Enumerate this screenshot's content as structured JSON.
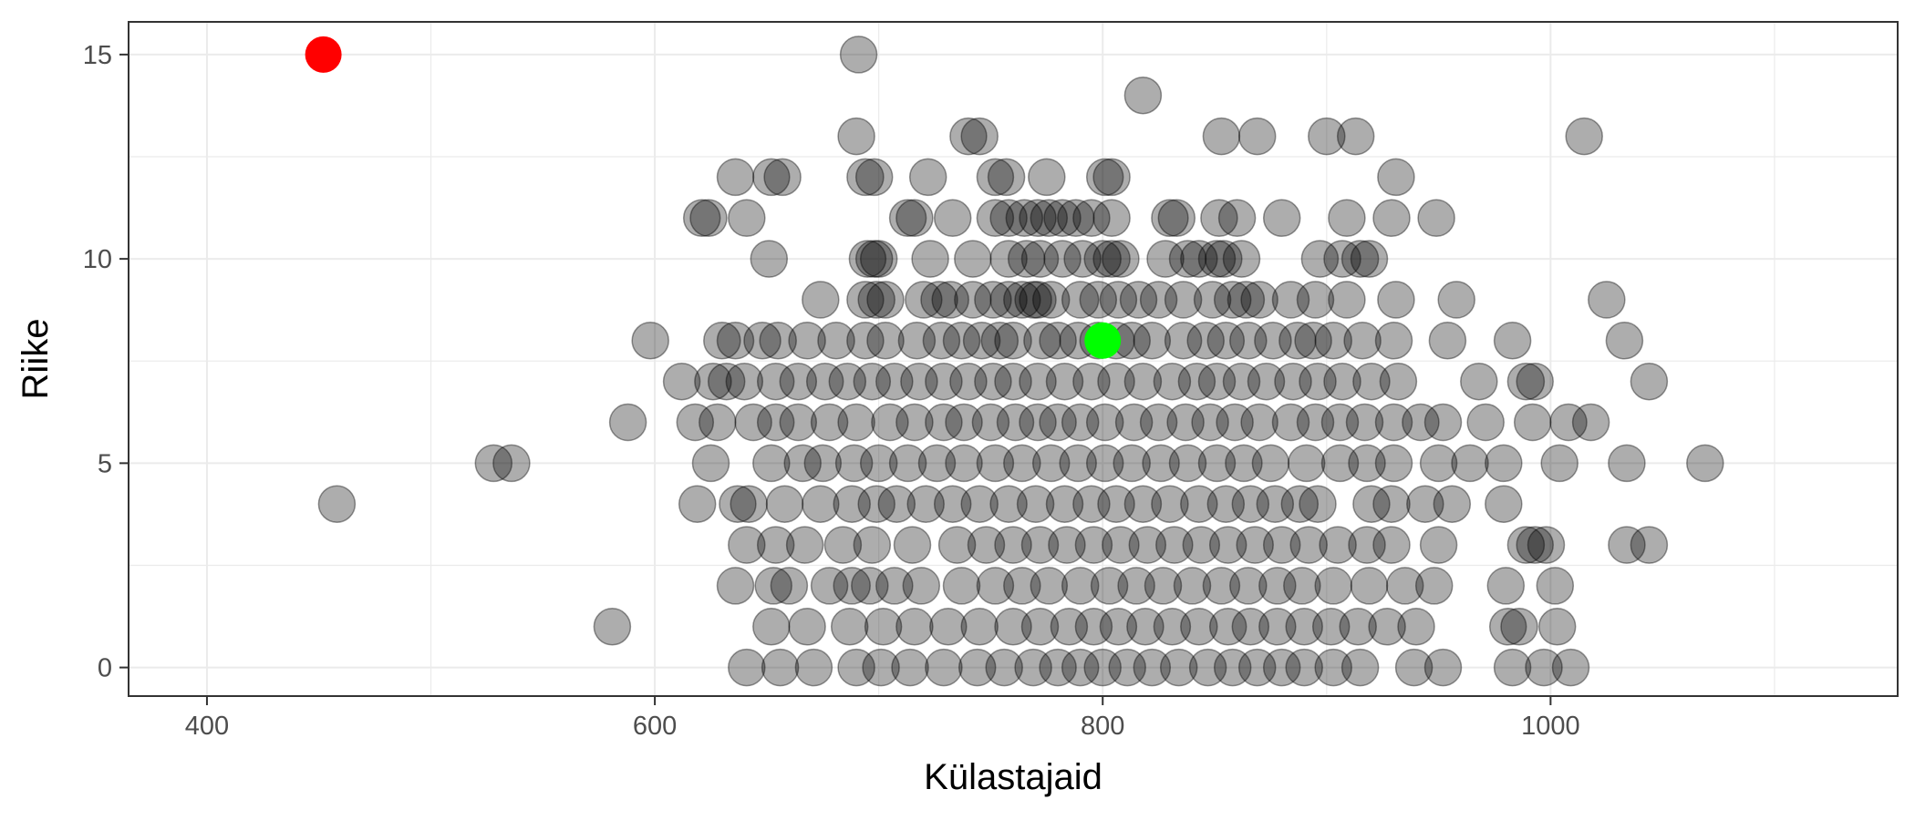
{
  "chart_data": {
    "type": "scatter",
    "xlabel": "Külastajaid",
    "ylabel": "Riike",
    "xlim": [
      365,
      1155
    ],
    "ylim": [
      -0.7,
      15.8
    ],
    "x_ticks": [
      400,
      600,
      800,
      1000
    ],
    "x_tick_labels": [
      "400",
      "600",
      "800",
      "1000"
    ],
    "x_minor_ticks": [
      500,
      700,
      900,
      1100
    ],
    "y_ticks": [
      0,
      5,
      10,
      15
    ],
    "y_tick_labels": [
      "0",
      "5",
      "10",
      "15"
    ],
    "y_minor_ticks": [
      2.5,
      7.5,
      12.5
    ],
    "grid": true,
    "legend": "none",
    "colors": {
      "points": "#000000",
      "highlight_red": "#ff0000",
      "highlight_green": "#00ff00",
      "grid": "#ebebeb",
      "frame": "#333333"
    },
    "point_opacity": 0.32,
    "highlights": [
      {
        "x": 452,
        "y": 15,
        "color": "#ff0000"
      },
      {
        "x": 800,
        "y": 8,
        "color": "#00ff00"
      }
    ],
    "series": [
      {
        "rows": [
          {
            "y": 15,
            "x": [
              691
            ]
          },
          {
            "y": 14,
            "x": [
              818
            ]
          },
          {
            "y": 13,
            "x": [
              690,
              740,
              745,
              853,
              869,
              900,
              913,
              1015
            ]
          },
          {
            "y": 12,
            "x": [
              636,
              652,
              657,
              694,
              698,
              722,
              752,
              757,
              775,
              801,
              804,
              931
            ]
          },
          {
            "y": 11,
            "x": [
              621,
              624,
              641,
              713,
              716,
              733,
              752,
              758,
              765,
              771,
              776,
              782,
              788,
              795,
              804,
              830,
              833,
              852,
              860,
              880,
              909,
              929,
              949
            ]
          },
          {
            "y": 10,
            "x": [
              651,
              695,
              698,
              700,
              723,
              742,
              758,
              766,
              772,
              782,
              791,
              800,
              804,
              808,
              828,
              838,
              843,
              851,
              854,
              862,
              897,
              907,
              915,
              919
            ]
          },
          {
            "y": 9,
            "x": [
              674,
              694,
              699,
              703,
              720,
              727,
              732,
              742,
              751,
              758,
              764,
              769,
              771,
              777,
              790,
              798,
              807,
              816,
              825,
              836,
              849,
              858,
              864,
              870,
              884,
              895,
              909,
              931,
              958,
              1025
            ]
          },
          {
            "y": 8,
            "x": [
              598,
              630,
              636,
              648,
              655,
              668,
              681,
              694,
              703,
              717,
              728,
              737,
              746,
              754,
              760,
              773,
              780,
              789,
              798,
              806,
              813,
              822,
              836,
              846,
              855,
              865,
              876,
              887,
              894,
              903,
              916,
              930,
              954,
              983,
              1033
            ]
          },
          {
            "y": 7,
            "x": [
              612,
              626,
              632,
              640,
              654,
              664,
              676,
              686,
              697,
              707,
              718,
              729,
              740,
              751,
              760,
              771,
              783,
              795,
              806,
              818,
              831,
              842,
              851,
              862,
              873,
              885,
              896,
              907,
              920,
              932,
              968,
              989,
              993,
              1044
            ]
          },
          {
            "y": 6,
            "x": [
              588,
              618,
              628,
              644,
              654,
              664,
              678,
              690,
              705,
              716,
              729,
              738,
              750,
              761,
              771,
              780,
              790,
              801,
              814,
              825,
              837,
              848,
              859,
              870,
              884,
              895,
              906,
              917,
              930,
              942,
              952,
              971,
              992,
              1008,
              1018
            ]
          },
          {
            "y": 5,
            "x": [
              528,
              536,
              625,
              652,
              666,
              675,
              689,
              700,
              713,
              726,
              738,
              752,
              764,
              777,
              789,
              801,
              813,
              826,
              838,
              851,
              863,
              875,
              891,
              906,
              918,
              930,
              950,
              964,
              979,
              1004,
              1034,
              1069
            ]
          },
          {
            "y": 4,
            "x": [
              458,
              619,
              637,
              642,
              658,
              674,
              688,
              699,
              708,
              721,
              733,
              745,
              758,
              770,
              783,
              795,
              806,
              818,
              830,
              843,
              855,
              866,
              877,
              888,
              896,
              920,
              929,
              944,
              956,
              979
            ]
          },
          {
            "y": 3,
            "x": [
              641,
              654,
              667,
              684,
              697,
              715,
              735,
              748,
              760,
              772,
              784,
              796,
              808,
              820,
              832,
              844,
              856,
              868,
              880,
              892,
              905,
              918,
              929,
              950,
              989,
              993,
              998,
              1034,
              1044
            ]
          },
          {
            "y": 2,
            "x": [
              636,
              653,
              660,
              678,
              688,
              696,
              707,
              719,
              737,
              752,
              764,
              776,
              790,
              803,
              815,
              827,
              840,
              853,
              865,
              878,
              889,
              903,
              919,
              935,
              948,
              980,
              1002
            ]
          },
          {
            "y": 1,
            "x": [
              581,
              652,
              668,
              687,
              702,
              716,
              731,
              745,
              760,
              772,
              785,
              796,
              807,
              819,
              831,
              843,
              856,
              866,
              878,
              890,
              902,
              914,
              927,
              940,
              981,
              986,
              1003
            ]
          },
          {
            "y": 0,
            "x": [
              641,
              656,
              671,
              690,
              701,
              714,
              729,
              744,
              756,
              769,
              780,
              790,
              800,
              811,
              822,
              834,
              847,
              858,
              869,
              880,
              890,
              903,
              915,
              939,
              952,
              983,
              997,
              1009
            ]
          }
        ]
      }
    ]
  }
}
